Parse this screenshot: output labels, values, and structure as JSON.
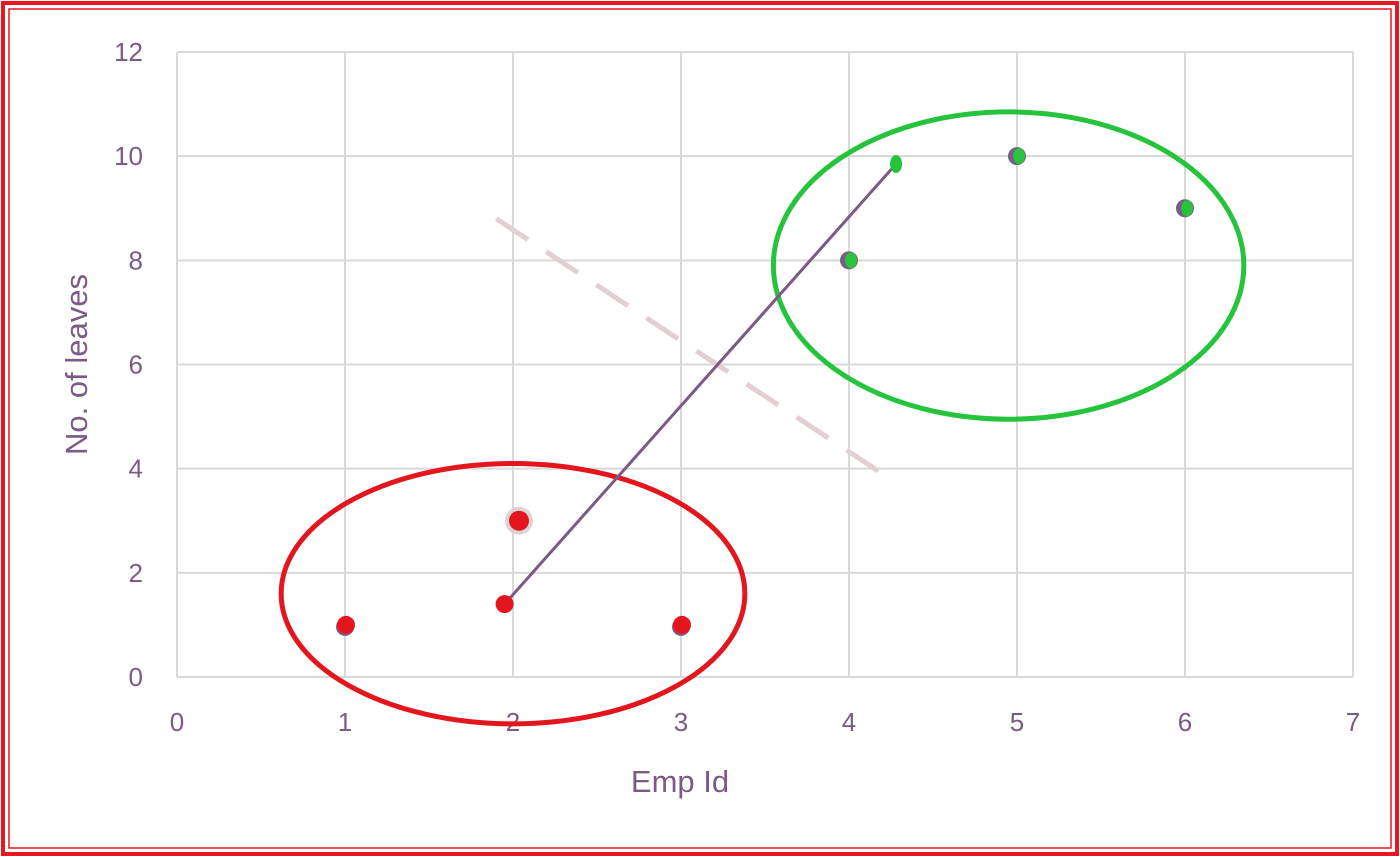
{
  "colors": {
    "border": "#e8161e",
    "axis_text": "#7b5a85",
    "grid": "#d9d9d9",
    "purple": "#7b5a85",
    "red": "#e3161e",
    "green": "#26c43d",
    "separator": "#e2cfd2"
  },
  "chart_data": {
    "type": "scatter",
    "title": "",
    "xlabel": "Emp Id",
    "ylabel": "No. of leaves",
    "xlim": [
      0,
      7
    ],
    "ylim": [
      0,
      12
    ],
    "x_ticks": [
      0,
      1,
      2,
      3,
      4,
      5,
      6,
      7
    ],
    "y_ticks": [
      0,
      2,
      4,
      6,
      8,
      10,
      12
    ],
    "grid": true,
    "legend": "none",
    "points": [
      {
        "x": 1,
        "y": 1,
        "cluster": "red"
      },
      {
        "x": 2,
        "y": 3,
        "cluster": "red"
      },
      {
        "x": 3,
        "y": 1,
        "cluster": "red"
      },
      {
        "x": 4,
        "y": 8,
        "cluster": "green"
      },
      {
        "x": 5,
        "y": 10,
        "cluster": "green"
      },
      {
        "x": 6,
        "y": 9,
        "cluster": "green"
      }
    ],
    "centroids": [
      {
        "x": 1.95,
        "y": 1.4,
        "cluster": "red"
      },
      {
        "x": 4.28,
        "y": 9.85,
        "cluster": "green"
      }
    ],
    "separator_line": {
      "x1": 1.9,
      "y1": 8.8,
      "x2": 4.2,
      "y2": 3.9,
      "style": "dashed"
    },
    "clusters": [
      {
        "name": "red",
        "cx": 2,
        "cy": 1.6,
        "rx": 1.38,
        "ry": 2.5
      },
      {
        "name": "green",
        "cx": 4.95,
        "cy": 7.9,
        "rx": 1.4,
        "ry": 2.95
      }
    ]
  }
}
